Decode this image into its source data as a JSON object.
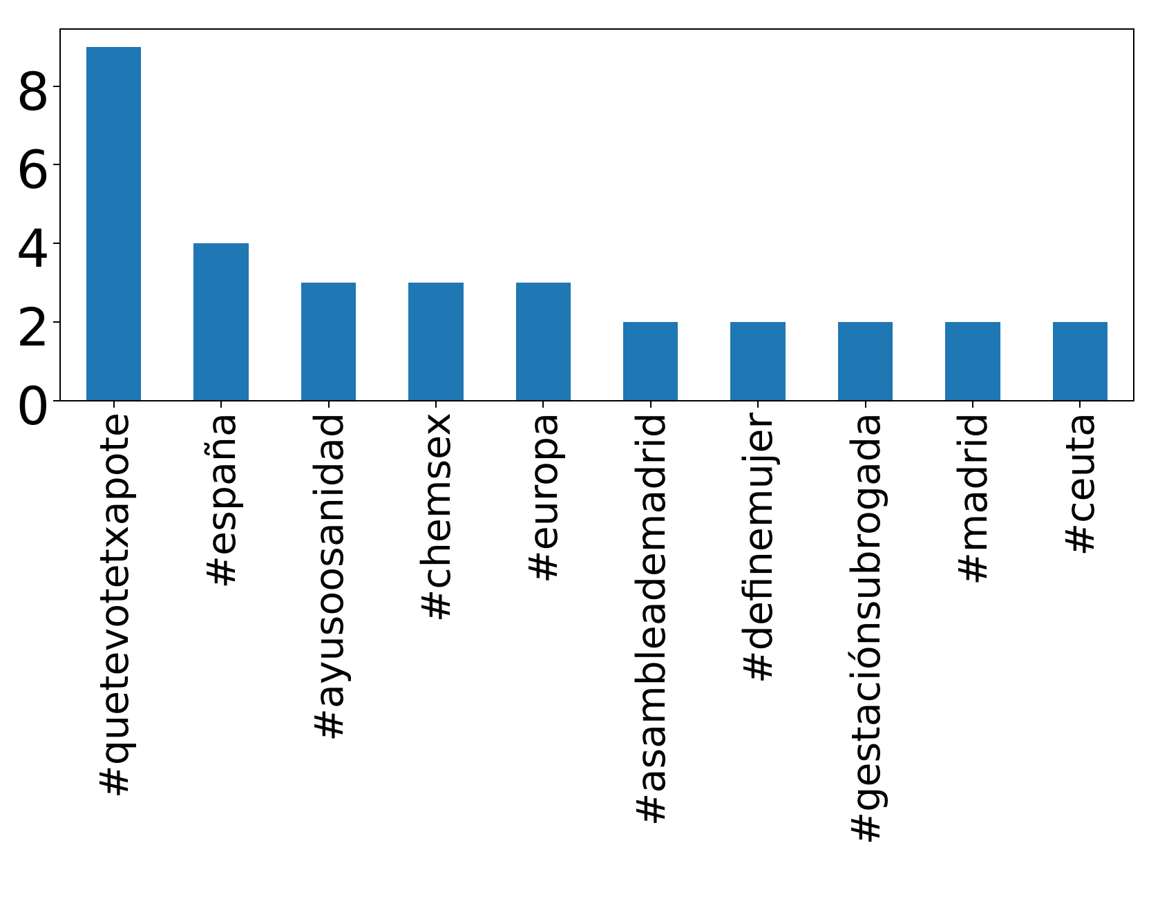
{
  "chart_data": {
    "type": "bar",
    "categories": [
      "#quetevotetxapote",
      "#españa",
      "#ayusoosanidad",
      "#chemsex",
      "#europa",
      "#asambleademadrid",
      "#definemujer",
      "#gestaciónsubrogada",
      "#madrid",
      "#ceuta"
    ],
    "values": [
      9,
      4,
      3,
      3,
      3,
      2,
      2,
      2,
      2,
      2
    ],
    "title": "",
    "xlabel": "",
    "ylabel": "",
    "ylim": [
      0,
      9.45
    ],
    "yticks": [
      0,
      2,
      4,
      6,
      8
    ],
    "x_tick_label_rotation": 90,
    "grid": false,
    "legend": null,
    "bar_color": "#1f77b4",
    "axis_color": "#000000",
    "background_color": "#ffffff"
  }
}
